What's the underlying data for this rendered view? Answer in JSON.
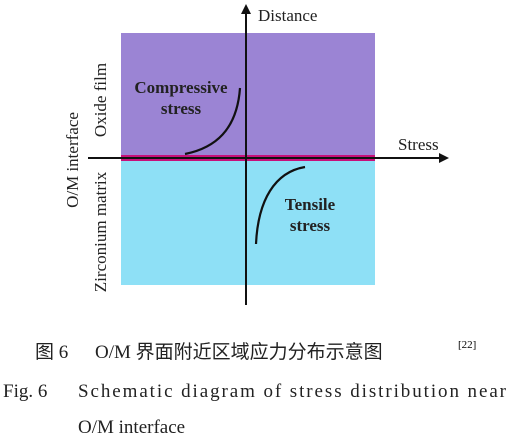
{
  "diagram": {
    "axes": {
      "y_label": "Distance",
      "x_label": "Stress"
    },
    "regions": {
      "upper": "Oxide film",
      "interface": "O/M interface",
      "lower": "Zirconium matrix"
    },
    "annotations": {
      "compressive": [
        "Compressive",
        "stress"
      ],
      "tensile": [
        "Tensile",
        "stress"
      ]
    }
  },
  "caption": {
    "zh": {
      "number": "图 6",
      "text": "O/M 界面附近区域应力分布示意图",
      "ref": "[22]"
    },
    "en": {
      "number": "Fig. 6",
      "line1": "Schematic diagram of stress distribution near",
      "line2": "O/M interface"
    }
  }
}
